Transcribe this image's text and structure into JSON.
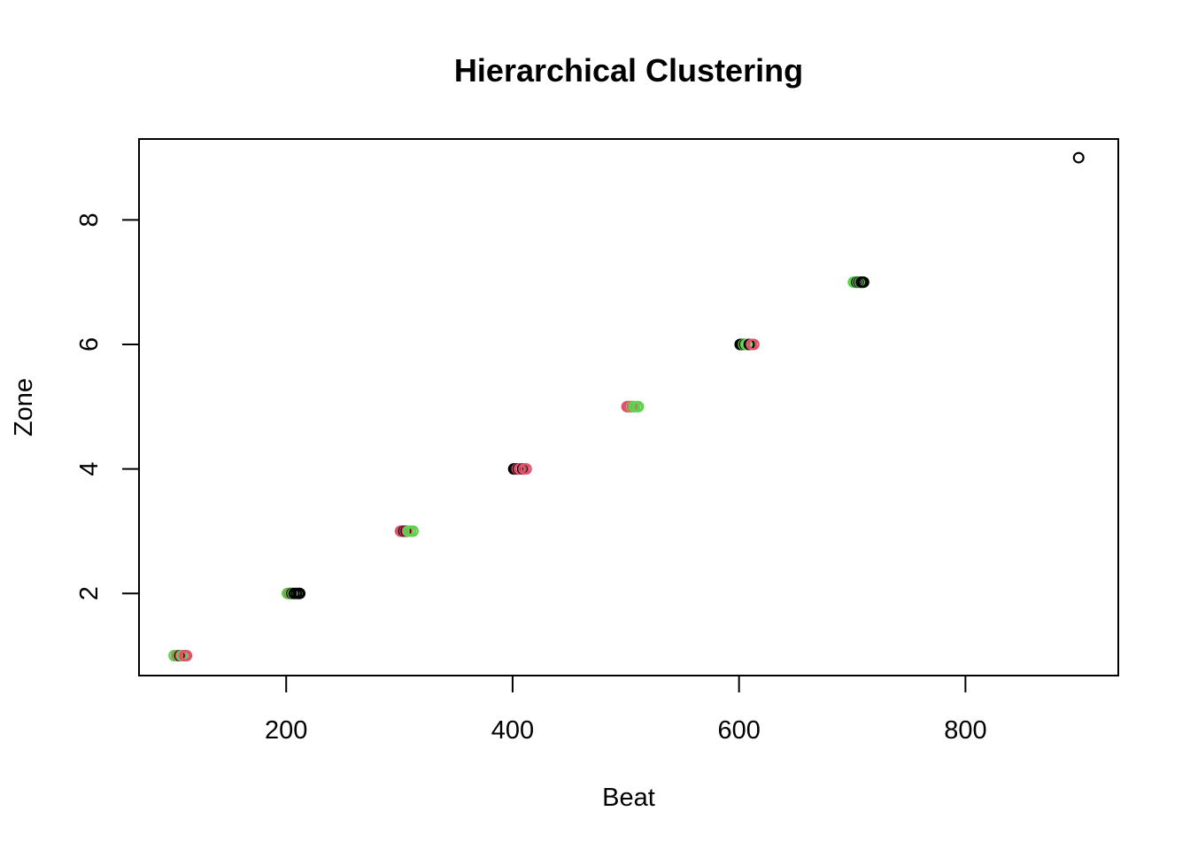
{
  "chart_data": {
    "type": "scatter",
    "title": "Hierarchical Clustering",
    "xlabel": "Beat",
    "ylabel": "Zone",
    "xlim": [
      70,
      935
    ],
    "ylim": [
      0.68,
      9.3
    ],
    "xticks": [
      200,
      400,
      600,
      800
    ],
    "yticks": [
      2,
      4,
      6,
      8
    ],
    "grid": false,
    "legend": "none",
    "colors": {
      "black": "#000000",
      "red": "#DF536B",
      "green": "#61D04F"
    },
    "points": [
      {
        "x": 101,
        "y": 1,
        "color": "green"
      },
      {
        "x": 103,
        "y": 1,
        "color": "green"
      },
      {
        "x": 104,
        "y": 1,
        "color": "red"
      },
      {
        "x": 105,
        "y": 1,
        "color": "green"
      },
      {
        "x": 106,
        "y": 1,
        "color": "black"
      },
      {
        "x": 107,
        "y": 1,
        "color": "red"
      },
      {
        "x": 108,
        "y": 1,
        "color": "green"
      },
      {
        "x": 110,
        "y": 1,
        "color": "red"
      },
      {
        "x": 111,
        "y": 1,
        "color": "red"
      },
      {
        "x": 112,
        "y": 1,
        "color": "red"
      },
      {
        "x": 201,
        "y": 2,
        "color": "green"
      },
      {
        "x": 202,
        "y": 2,
        "color": "green"
      },
      {
        "x": 203,
        "y": 2,
        "color": "red"
      },
      {
        "x": 204,
        "y": 2,
        "color": "green"
      },
      {
        "x": 205,
        "y": 2,
        "color": "black"
      },
      {
        "x": 206,
        "y": 2,
        "color": "green"
      },
      {
        "x": 207,
        "y": 2,
        "color": "black"
      },
      {
        "x": 209,
        "y": 2,
        "color": "black"
      },
      {
        "x": 211,
        "y": 2,
        "color": "black"
      },
      {
        "x": 212,
        "y": 2,
        "color": "black"
      },
      {
        "x": 301,
        "y": 3,
        "color": "red"
      },
      {
        "x": 302,
        "y": 3,
        "color": "red"
      },
      {
        "x": 303,
        "y": 3,
        "color": "red"
      },
      {
        "x": 304,
        "y": 3,
        "color": "black"
      },
      {
        "x": 305,
        "y": 3,
        "color": "red"
      },
      {
        "x": 306,
        "y": 3,
        "color": "black"
      },
      {
        "x": 307,
        "y": 3,
        "color": "red"
      },
      {
        "x": 308,
        "y": 3,
        "color": "green"
      },
      {
        "x": 310,
        "y": 3,
        "color": "green"
      },
      {
        "x": 312,
        "y": 3,
        "color": "green"
      },
      {
        "x": 401,
        "y": 4,
        "color": "black"
      },
      {
        "x": 402,
        "y": 4,
        "color": "black"
      },
      {
        "x": 403,
        "y": 4,
        "color": "black"
      },
      {
        "x": 404,
        "y": 4,
        "color": "red"
      },
      {
        "x": 405,
        "y": 4,
        "color": "black"
      },
      {
        "x": 406,
        "y": 4,
        "color": "red"
      },
      {
        "x": 407,
        "y": 4,
        "color": "red"
      },
      {
        "x": 409,
        "y": 4,
        "color": "black"
      },
      {
        "x": 410,
        "y": 4,
        "color": "red"
      },
      {
        "x": 412,
        "y": 4,
        "color": "red"
      },
      {
        "x": 501,
        "y": 5,
        "color": "red"
      },
      {
        "x": 502,
        "y": 5,
        "color": "red"
      },
      {
        "x": 503,
        "y": 5,
        "color": "red"
      },
      {
        "x": 504,
        "y": 5,
        "color": "red"
      },
      {
        "x": 505,
        "y": 5,
        "color": "green"
      },
      {
        "x": 506,
        "y": 5,
        "color": "red"
      },
      {
        "x": 507,
        "y": 5,
        "color": "green"
      },
      {
        "x": 508,
        "y": 5,
        "color": "green"
      },
      {
        "x": 510,
        "y": 5,
        "color": "green"
      },
      {
        "x": 511,
        "y": 5,
        "color": "green"
      },
      {
        "x": 601,
        "y": 6,
        "color": "black"
      },
      {
        "x": 602,
        "y": 6,
        "color": "black"
      },
      {
        "x": 603,
        "y": 6,
        "color": "black"
      },
      {
        "x": 604,
        "y": 6,
        "color": "green"
      },
      {
        "x": 605,
        "y": 6,
        "color": "black"
      },
      {
        "x": 606,
        "y": 6,
        "color": "green"
      },
      {
        "x": 608,
        "y": 6,
        "color": "green"
      },
      {
        "x": 609,
        "y": 6,
        "color": "black"
      },
      {
        "x": 611,
        "y": 6,
        "color": "red"
      },
      {
        "x": 613,
        "y": 6,
        "color": "red"
      },
      {
        "x": 701,
        "y": 7,
        "color": "green"
      },
      {
        "x": 702,
        "y": 7,
        "color": "green"
      },
      {
        "x": 703,
        "y": 7,
        "color": "green"
      },
      {
        "x": 704,
        "y": 7,
        "color": "black"
      },
      {
        "x": 705,
        "y": 7,
        "color": "green"
      },
      {
        "x": 706,
        "y": 7,
        "color": "black"
      },
      {
        "x": 707,
        "y": 7,
        "color": "green"
      },
      {
        "x": 708,
        "y": 7,
        "color": "black"
      },
      {
        "x": 709,
        "y": 7,
        "color": "black"
      },
      {
        "x": 710,
        "y": 7,
        "color": "black"
      },
      {
        "x": 900,
        "y": 9,
        "color": "black"
      }
    ]
  }
}
